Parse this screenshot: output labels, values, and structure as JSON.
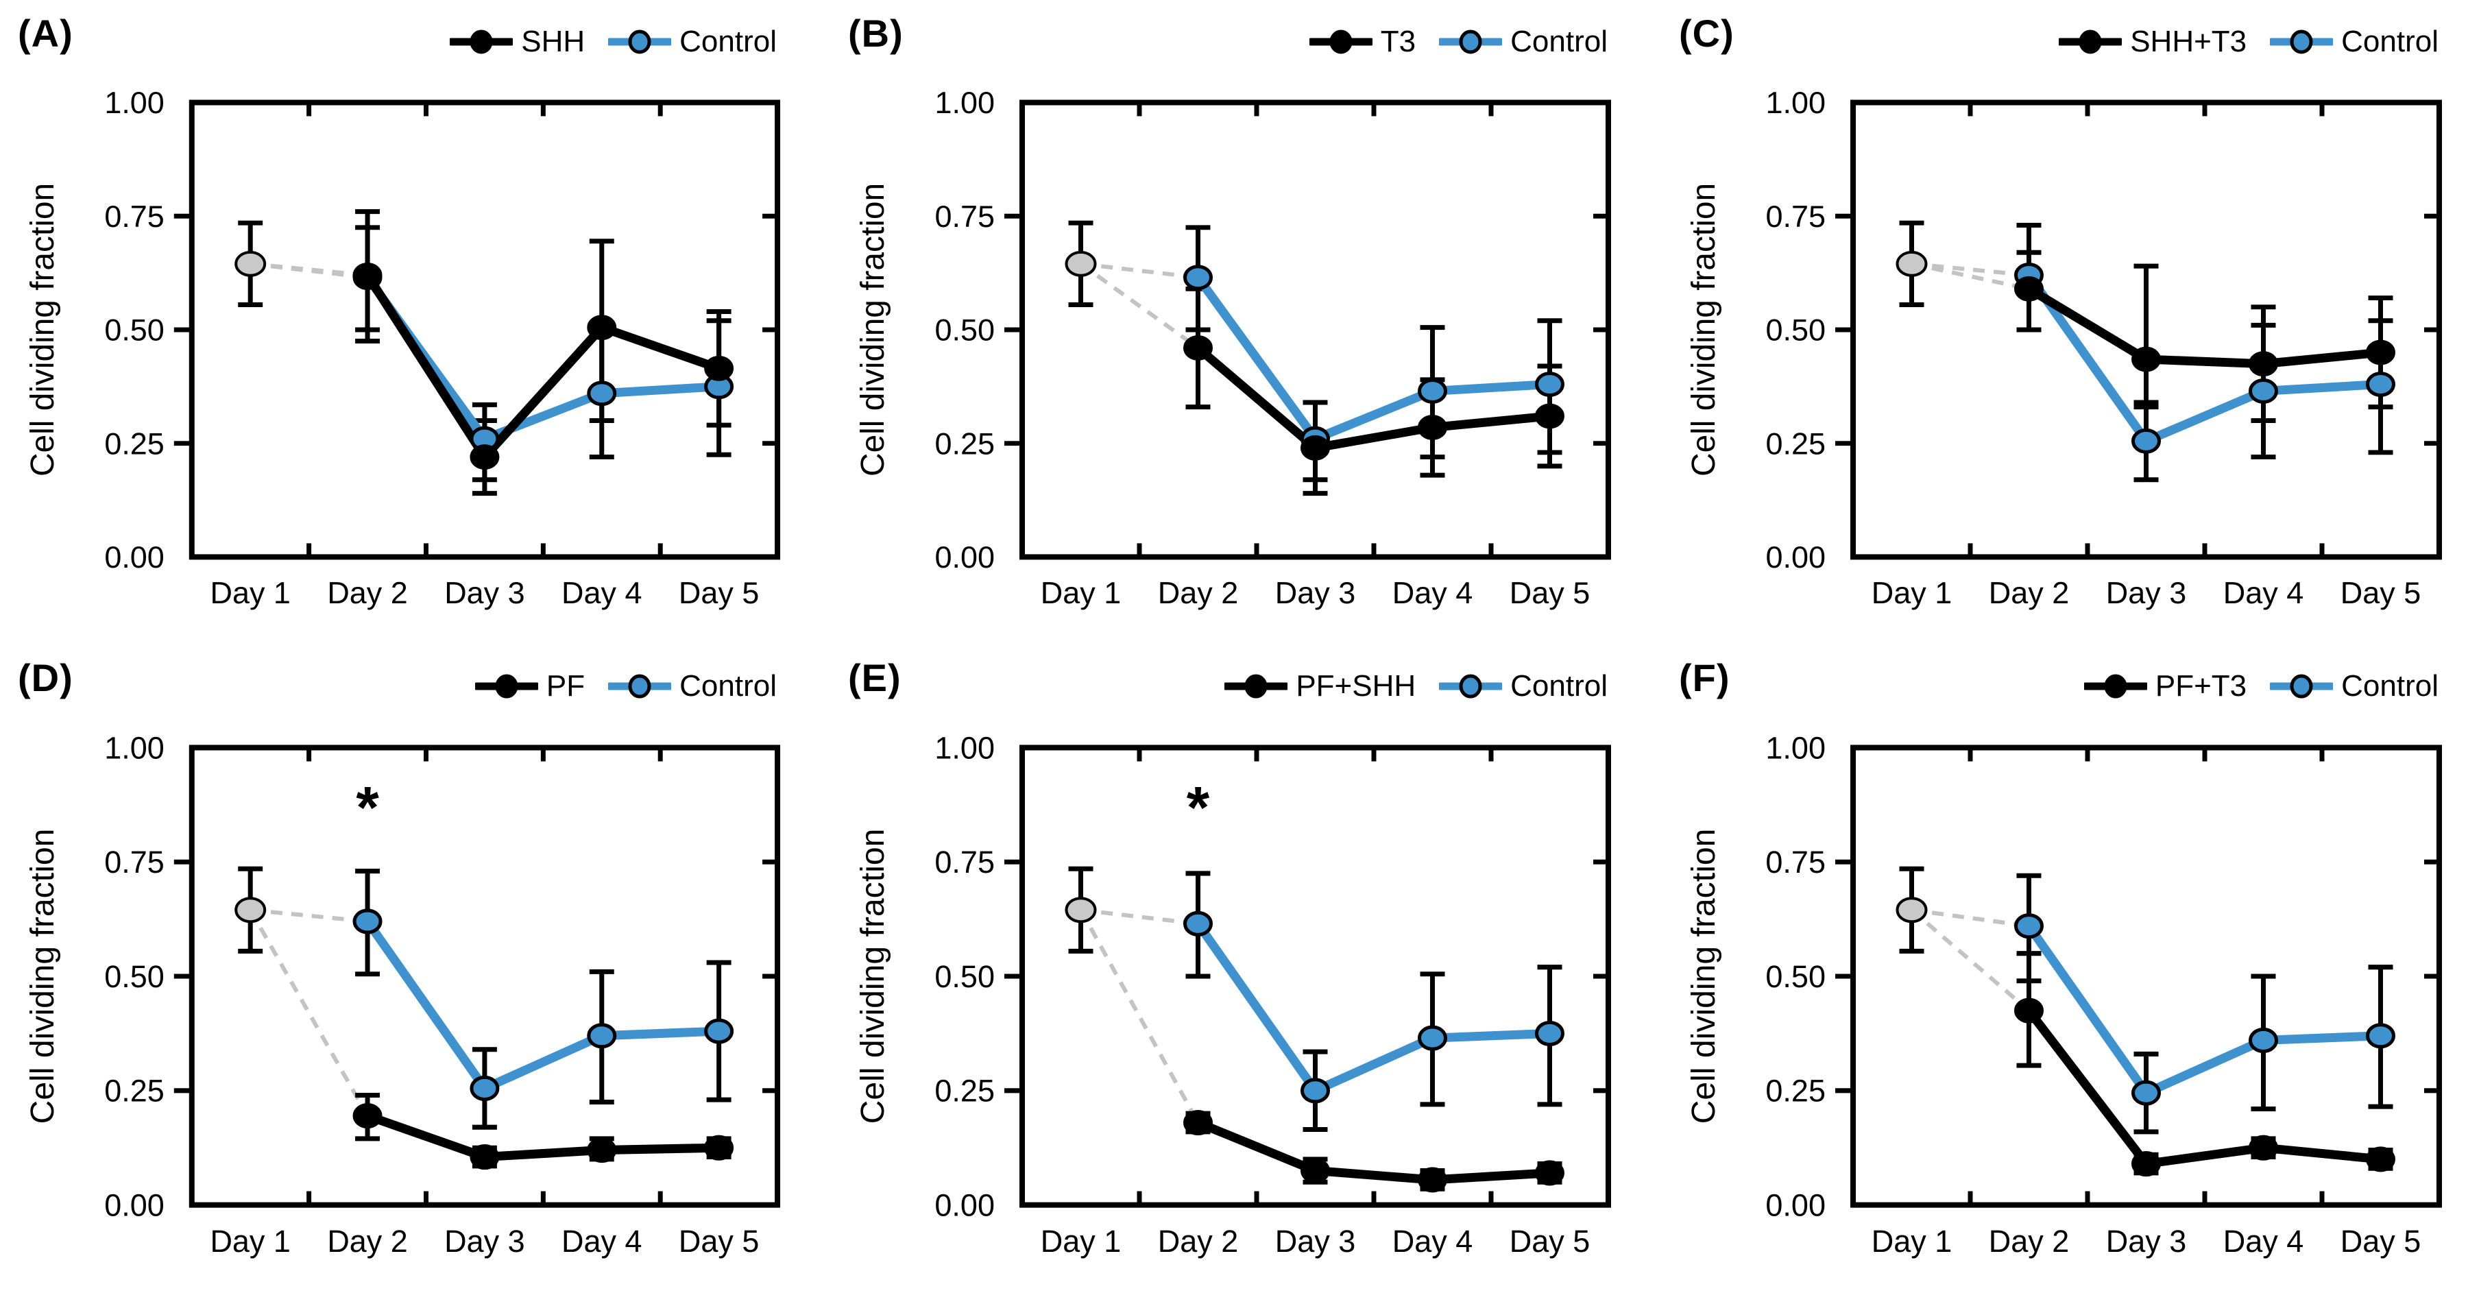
{
  "figure": {
    "background": "#ffffff",
    "colors": {
      "treatment": "#000000",
      "control": "#3f92cd",
      "baseline_fill": "#c9c9c9",
      "dashed_line": "#c3c3c3",
      "marker_outline": "#000000",
      "error_bar": "#000000",
      "axis": "#000000"
    }
  },
  "chart_data": [
    {
      "panel_label": "(A)",
      "type": "line",
      "title": "",
      "xlabel": "",
      "ylabel": "Cell dividing fraction",
      "ylim": [
        0,
        1
      ],
      "yticks": [
        0,
        0.25,
        0.5,
        0.75,
        1
      ],
      "ytick_labels": [
        "0.00",
        "0.25",
        "0.50",
        "0.75",
        "1.00"
      ],
      "categories": [
        "Day 1",
        "Day 2",
        "Day 3",
        "Day 4",
        "Day 5"
      ],
      "grid": false,
      "legend_position": "top-right",
      "baseline_point": {
        "category": "Day 1",
        "value": 0.645,
        "err_lo": 0.555,
        "err_hi": 0.735
      },
      "significance": null,
      "series": [
        {
          "name": "Control",
          "color": "#3f92cd",
          "x": [
            "Day 2",
            "Day 3",
            "Day 4",
            "Day 5"
          ],
          "values": [
            0.615,
            0.26,
            0.36,
            0.375
          ],
          "err_lo": [
            0.5,
            0.17,
            0.22,
            0.225
          ],
          "err_hi": [
            0.725,
            0.335,
            0.505,
            0.52
          ]
        },
        {
          "name": "SHH",
          "color": "#000000",
          "x": [
            "Day 2",
            "Day 3",
            "Day 4",
            "Day 5"
          ],
          "values": [
            0.62,
            0.22,
            0.505,
            0.415
          ],
          "err_lo": [
            0.475,
            0.14,
            0.3,
            0.29
          ],
          "err_hi": [
            0.76,
            0.3,
            0.695,
            0.54
          ]
        }
      ],
      "legend_order": [
        "SHH",
        "Control"
      ]
    },
    {
      "panel_label": "(B)",
      "type": "line",
      "title": "",
      "xlabel": "",
      "ylabel": "Cell dividing fraction",
      "ylim": [
        0,
        1
      ],
      "yticks": [
        0,
        0.25,
        0.5,
        0.75,
        1
      ],
      "ytick_labels": [
        "0.00",
        "0.25",
        "0.50",
        "0.75",
        "1.00"
      ],
      "categories": [
        "Day 1",
        "Day 2",
        "Day 3",
        "Day 4",
        "Day 5"
      ],
      "grid": false,
      "legend_position": "top-right",
      "baseline_point": {
        "category": "Day 1",
        "value": 0.645,
        "err_lo": 0.555,
        "err_hi": 0.735
      },
      "significance": null,
      "series": [
        {
          "name": "Control",
          "color": "#3f92cd",
          "x": [
            "Day 2",
            "Day 3",
            "Day 4",
            "Day 5"
          ],
          "values": [
            0.615,
            0.26,
            0.365,
            0.38
          ],
          "err_lo": [
            0.5,
            0.17,
            0.22,
            0.23
          ],
          "err_hi": [
            0.725,
            0.34,
            0.505,
            0.52
          ]
        },
        {
          "name": "T3",
          "color": "#000000",
          "x": [
            "Day 2",
            "Day 3",
            "Day 4",
            "Day 5"
          ],
          "values": [
            0.46,
            0.24,
            0.285,
            0.31
          ],
          "err_lo": [
            0.33,
            0.14,
            0.18,
            0.2
          ],
          "err_hi": [
            0.59,
            0.34,
            0.39,
            0.42
          ]
        }
      ],
      "legend_order": [
        "T3",
        "Control"
      ]
    },
    {
      "panel_label": "(C)",
      "type": "line",
      "title": "",
      "xlabel": "",
      "ylabel": "Cell dividing fraction",
      "ylim": [
        0,
        1
      ],
      "yticks": [
        0,
        0.25,
        0.5,
        0.75,
        1
      ],
      "ytick_labels": [
        "0.00",
        "0.25",
        "0.50",
        "0.75",
        "1.00"
      ],
      "categories": [
        "Day 1",
        "Day 2",
        "Day 3",
        "Day 4",
        "Day 5"
      ],
      "grid": false,
      "legend_position": "top-right",
      "baseline_point": {
        "category": "Day 1",
        "value": 0.645,
        "err_lo": 0.555,
        "err_hi": 0.735
      },
      "significance": null,
      "series": [
        {
          "name": "Control",
          "color": "#3f92cd",
          "x": [
            "Day 2",
            "Day 3",
            "Day 4",
            "Day 5"
          ],
          "values": [
            0.62,
            0.255,
            0.365,
            0.38
          ],
          "err_lo": [
            0.5,
            0.17,
            0.22,
            0.23
          ],
          "err_hi": [
            0.73,
            0.34,
            0.51,
            0.52
          ]
        },
        {
          "name": "SHH+T3",
          "color": "#000000",
          "x": [
            "Day 2",
            "Day 3",
            "Day 4",
            "Day 5"
          ],
          "values": [
            0.59,
            0.435,
            0.425,
            0.45
          ],
          "err_lo": [
            0.5,
            0.33,
            0.3,
            0.33
          ],
          "err_hi": [
            0.67,
            0.64,
            0.55,
            0.57
          ]
        }
      ],
      "legend_order": [
        "SHH+T3",
        "Control"
      ]
    },
    {
      "panel_label": "(D)",
      "type": "line",
      "title": "",
      "xlabel": "",
      "ylabel": "Cell dividing fraction",
      "ylim": [
        0,
        1
      ],
      "yticks": [
        0,
        0.25,
        0.5,
        0.75,
        1
      ],
      "ytick_labels": [
        "0.00",
        "0.25",
        "0.50",
        "0.75",
        "1.00"
      ],
      "categories": [
        "Day 1",
        "Day 2",
        "Day 3",
        "Day 4",
        "Day 5"
      ],
      "grid": false,
      "legend_position": "top-right",
      "baseline_point": {
        "category": "Day 1",
        "value": 0.645,
        "err_lo": 0.555,
        "err_hi": 0.735
      },
      "significance": {
        "symbol": "*",
        "category": "Day 2",
        "y": 0.87
      },
      "series": [
        {
          "name": "Control",
          "color": "#3f92cd",
          "x": [
            "Day 2",
            "Day 3",
            "Day 4",
            "Day 5"
          ],
          "values": [
            0.62,
            0.255,
            0.37,
            0.38
          ],
          "err_lo": [
            0.505,
            0.17,
            0.225,
            0.23
          ],
          "err_hi": [
            0.73,
            0.34,
            0.51,
            0.53
          ]
        },
        {
          "name": "PF",
          "color": "#000000",
          "x": [
            "Day 2",
            "Day 3",
            "Day 4",
            "Day 5"
          ],
          "values": [
            0.195,
            0.105,
            0.12,
            0.125
          ],
          "err_lo": [
            0.145,
            0.085,
            0.1,
            0.105
          ],
          "err_hi": [
            0.24,
            0.125,
            0.145,
            0.145
          ]
        }
      ],
      "legend_order": [
        "PF",
        "Control"
      ]
    },
    {
      "panel_label": "(E)",
      "type": "line",
      "title": "",
      "xlabel": "",
      "ylabel": "Cell dividing fraction",
      "ylim": [
        0,
        1
      ],
      "yticks": [
        0,
        0.25,
        0.5,
        0.75,
        1
      ],
      "ytick_labels": [
        "0.00",
        "0.25",
        "0.50",
        "0.75",
        "1.00"
      ],
      "categories": [
        "Day 1",
        "Day 2",
        "Day 3",
        "Day 4",
        "Day 5"
      ],
      "grid": false,
      "legend_position": "top-right",
      "baseline_point": {
        "category": "Day 1",
        "value": 0.645,
        "err_lo": 0.555,
        "err_hi": 0.735
      },
      "significance": {
        "symbol": "*",
        "category": "Day 2",
        "y": 0.87
      },
      "series": [
        {
          "name": "Control",
          "color": "#3f92cd",
          "x": [
            "Day 2",
            "Day 3",
            "Day 4",
            "Day 5"
          ],
          "values": [
            0.615,
            0.25,
            0.365,
            0.375
          ],
          "err_lo": [
            0.5,
            0.165,
            0.22,
            0.22
          ],
          "err_hi": [
            0.725,
            0.335,
            0.505,
            0.52
          ]
        },
        {
          "name": "PF+SHH",
          "color": "#000000",
          "x": [
            "Day 2",
            "Day 3",
            "Day 4",
            "Day 5"
          ],
          "values": [
            0.18,
            0.075,
            0.055,
            0.07
          ],
          "err_lo": [
            0.16,
            0.05,
            0.035,
            0.05
          ],
          "err_hi": [
            0.2,
            0.1,
            0.075,
            0.09
          ]
        }
      ],
      "legend_order": [
        "PF+SHH",
        "Control"
      ]
    },
    {
      "panel_label": "(F)",
      "type": "line",
      "title": "",
      "xlabel": "",
      "ylabel": "Cell dividing fraction",
      "ylim": [
        0,
        1
      ],
      "yticks": [
        0,
        0.25,
        0.5,
        0.75,
        1
      ],
      "ytick_labels": [
        "0.00",
        "0.25",
        "0.50",
        "0.75",
        "1.00"
      ],
      "categories": [
        "Day 1",
        "Day 2",
        "Day 3",
        "Day 4",
        "Day 5"
      ],
      "grid": false,
      "legend_position": "top-right",
      "baseline_point": {
        "category": "Day 1",
        "value": 0.645,
        "err_lo": 0.555,
        "err_hi": 0.735
      },
      "significance": null,
      "series": [
        {
          "name": "Control",
          "color": "#3f92cd",
          "x": [
            "Day 2",
            "Day 3",
            "Day 4",
            "Day 5"
          ],
          "values": [
            0.61,
            0.245,
            0.36,
            0.37
          ],
          "err_lo": [
            0.49,
            0.16,
            0.21,
            0.215
          ],
          "err_hi": [
            0.72,
            0.33,
            0.5,
            0.52
          ]
        },
        {
          "name": "PF+T3",
          "color": "#000000",
          "x": [
            "Day 2",
            "Day 3",
            "Day 4",
            "Day 5"
          ],
          "values": [
            0.425,
            0.09,
            0.125,
            0.1
          ],
          "err_lo": [
            0.305,
            0.07,
            0.105,
            0.08
          ],
          "err_hi": [
            0.55,
            0.11,
            0.145,
            0.12
          ]
        }
      ],
      "legend_order": [
        "PF+T3",
        "Control"
      ]
    }
  ]
}
